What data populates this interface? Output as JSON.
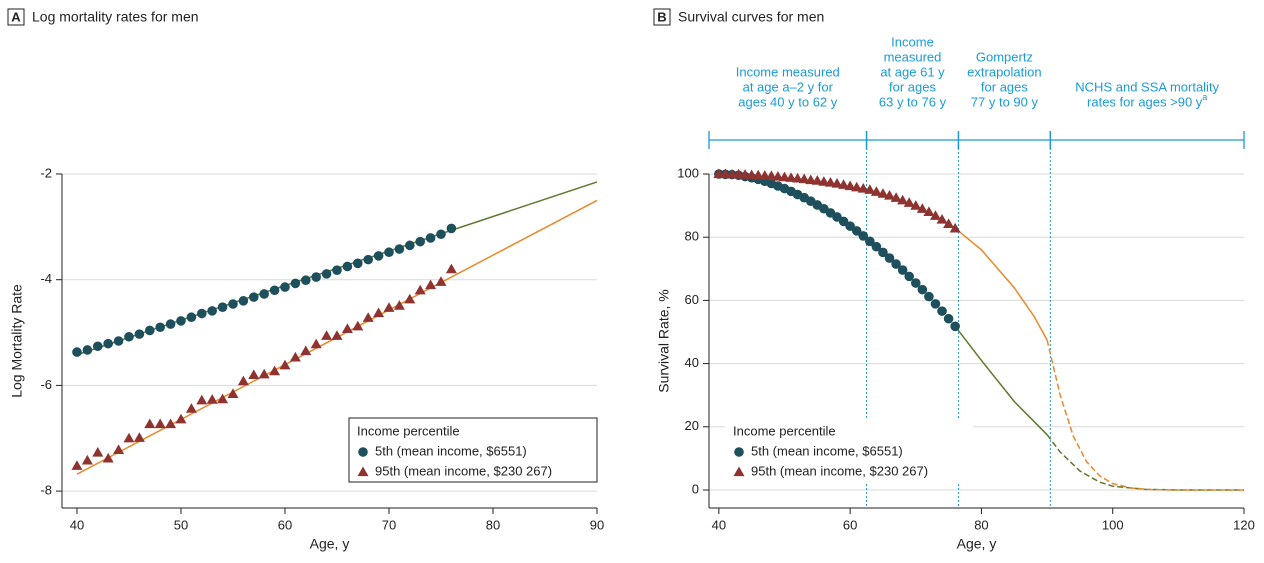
{
  "chart_data": [
    {
      "type": "scatter",
      "panel": "A",
      "title": "Log mortality rates for men",
      "xlabel": "Age, y",
      "ylabel": "Log Mortality Rate",
      "xlim": [
        38.56,
        90
      ],
      "ylim": [
        -8.32,
        -2
      ],
      "xticks": [
        40,
        50,
        60,
        70,
        80,
        90
      ],
      "yticks": [
        -8,
        -6,
        -4,
        -2
      ],
      "grid": true,
      "legend": {
        "title": "Income percentile",
        "position": "lower right",
        "frame": true
      },
      "series": [
        {
          "name": "5th (mean income, $6551)",
          "color": "#1d4f5c",
          "mode": "markers",
          "marker": "circle",
          "x": [
            40,
            41,
            42,
            43,
            44,
            45,
            46,
            47,
            48,
            49,
            50,
            51,
            52,
            53,
            54,
            55,
            56,
            57,
            58,
            59,
            60,
            61,
            62,
            63,
            64,
            65,
            66,
            67,
            68,
            69,
            70,
            71,
            72,
            73,
            74,
            75,
            76
          ],
          "values": [
            -5.37,
            -5.33,
            -5.26,
            -5.21,
            -5.16,
            -5.08,
            -5.03,
            -4.96,
            -4.9,
            -4.84,
            -4.78,
            -4.71,
            -4.64,
            -4.59,
            -4.52,
            -4.46,
            -4.4,
            -4.33,
            -4.27,
            -4.2,
            -4.14,
            -4.07,
            -4.01,
            -3.95,
            -3.89,
            -3.82,
            -3.75,
            -3.69,
            -3.62,
            -3.55,
            -3.48,
            -3.42,
            -3.35,
            -3.28,
            -3.21,
            -3.14,
            -3.03
          ]
        },
        {
          "name": "95th (mean income, $230 267)",
          "color": "#8e3330",
          "mode": "markers",
          "marker": "triangle",
          "x": [
            40,
            41,
            42,
            43,
            44,
            45,
            46,
            47,
            48,
            49,
            50,
            51,
            52,
            53,
            54,
            55,
            56,
            57,
            58,
            59,
            60,
            61,
            62,
            63,
            64,
            65,
            66,
            67,
            68,
            69,
            70,
            71,
            72,
            73,
            74,
            75,
            76
          ],
          "values": [
            -7.52,
            -7.42,
            -7.27,
            -7.38,
            -7.22,
            -7.0,
            -6.99,
            -6.73,
            -6.73,
            -6.73,
            -6.64,
            -6.44,
            -6.28,
            -6.27,
            -6.26,
            -6.16,
            -5.92,
            -5.8,
            -5.79,
            -5.73,
            -5.62,
            -5.47,
            -5.35,
            -5.22,
            -5.06,
            -5.06,
            -4.93,
            -4.88,
            -4.72,
            -4.63,
            -4.53,
            -4.49,
            -4.37,
            -4.2,
            -4.1,
            -4.04,
            -3.8
          ]
        },
        {
          "color": "#5b7a2a",
          "mode": "line",
          "x": [
            40,
            90
          ],
          "values": [
            -5.42,
            -2.15
          ]
        },
        {
          "color": "#e8892b",
          "mode": "line",
          "x": [
            40,
            90
          ],
          "values": [
            -7.68,
            -2.5
          ]
        }
      ]
    },
    {
      "type": "scatter",
      "panel": "B",
      "title": "Survival curves for men",
      "xlabel": "Age, y",
      "ylabel": "Survival Rate, %",
      "xlim": [
        38.5,
        120
      ],
      "ylim": [
        -5.7,
        100
      ],
      "xticks": [
        40,
        60,
        80,
        100,
        120
      ],
      "yticks": [
        0,
        20,
        40,
        60,
        80,
        100
      ],
      "grid": true,
      "legend": {
        "title": "Income percentile",
        "position": "lower left",
        "frame": false
      },
      "annotation_color": "#1a9bd7",
      "annotations": [
        {
          "lines": [
            "Income measured",
            "at age a–2 y for",
            "ages 40 y to 62 y"
          ],
          "x_range": [
            38.5,
            62.5
          ]
        },
        {
          "lines": [
            "Income",
            "measured",
            "at age 61 y",
            "for ages",
            "63 y to 76 y"
          ],
          "x_range": [
            62.5,
            76.5
          ]
        },
        {
          "lines": [
            "Gompertz",
            "extrapolation",
            "for ages",
            "77 y to 90 y"
          ],
          "x_range": [
            76.5,
            90.5
          ]
        },
        {
          "lines": [
            "NCHS and SSA mortality",
            "rates for ages >90 y"
          ],
          "superscript": "a",
          "x_range": [
            90.5,
            120
          ]
        }
      ],
      "vlines": [
        62.5,
        76.5,
        90.5
      ],
      "series": [
        {
          "color": "#5b7a2a",
          "mode": "line",
          "x": [
            76,
            80,
            85,
            90
          ],
          "values": [
            51.8,
            41,
            28,
            17.5
          ]
        },
        {
          "color": "#5b7a2a",
          "mode": "line",
          "dash": true,
          "x": [
            90,
            92,
            95,
            98,
            100,
            105,
            110,
            120
          ],
          "values": [
            17.5,
            12,
            6,
            2.5,
            1.2,
            0.2,
            0,
            0
          ]
        },
        {
          "color": "#e8892b",
          "mode": "line",
          "x": [
            76,
            80,
            85,
            88,
            90
          ],
          "values": [
            82.8,
            76,
            64,
            55,
            47.5
          ]
        },
        {
          "color": "#e8892b",
          "mode": "line",
          "dash": true,
          "x": [
            90,
            92,
            94,
            96,
            98,
            100,
            103,
            106,
            110,
            120
          ],
          "values": [
            47.5,
            30,
            17,
            9,
            4.5,
            2,
            0.6,
            0.1,
            0,
            0
          ]
        },
        {
          "name": "5th (mean income, $6551)",
          "color": "#1d4f5c",
          "mode": "markers",
          "marker": "circle",
          "x": [
            40,
            41,
            42,
            43,
            44,
            45,
            46,
            47,
            48,
            49,
            50,
            51,
            52,
            53,
            54,
            55,
            56,
            57,
            58,
            59,
            60,
            61,
            62,
            63,
            64,
            65,
            66,
            67,
            68,
            69,
            70,
            71,
            72,
            73,
            74,
            75,
            76
          ],
          "values": [
            100,
            99.9,
            99.8,
            99.6,
            99.2,
            98.8,
            98.3,
            97.7,
            97.0,
            96.2,
            95.4,
            94.5,
            93.5,
            92.5,
            91.4,
            90.2,
            89.0,
            87.7,
            86.4,
            85.0,
            83.5,
            82.0,
            80.4,
            78.7,
            77.0,
            75.2,
            73.4,
            71.5,
            69.6,
            67.6,
            65.5,
            63.4,
            61.2,
            58.9,
            56.6,
            54.2,
            51.8
          ]
        },
        {
          "name": "95th (mean income, $230 267)",
          "color": "#8e3330",
          "mode": "markers",
          "marker": "triangle",
          "x": [
            40,
            41,
            42,
            43,
            44,
            45,
            46,
            47,
            48,
            49,
            50,
            51,
            52,
            53,
            54,
            55,
            56,
            57,
            58,
            59,
            60,
            61,
            62,
            63,
            64,
            65,
            66,
            67,
            68,
            69,
            70,
            71,
            72,
            73,
            74,
            75,
            76
          ],
          "values": [
            100,
            100,
            99.9,
            99.9,
            99.8,
            99.7,
            99.6,
            99.5,
            99.4,
            99.2,
            99.0,
            98.8,
            98.6,
            98.4,
            98.1,
            97.9,
            97.6,
            97.3,
            97.0,
            96.6,
            96.2,
            95.8,
            95.4,
            95.0,
            94.4,
            93.8,
            93.2,
            92.5,
            91.7,
            90.9,
            90.0,
            89.0,
            88.0,
            86.8,
            85.6,
            84.2,
            82.8
          ]
        }
      ]
    }
  ]
}
